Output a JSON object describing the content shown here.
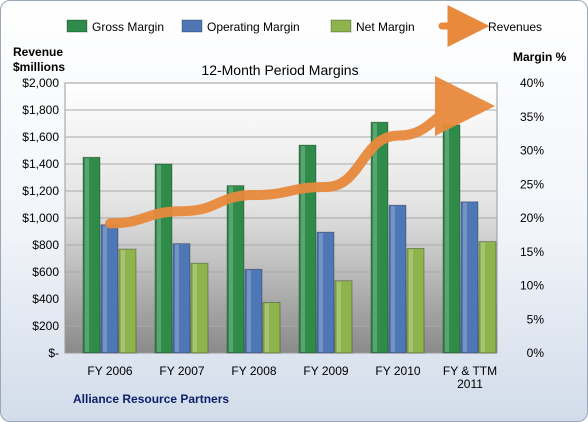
{
  "chart_data": {
    "type": "bar",
    "title": "12-Month Period Margins",
    "company": "Alliance Resource Partners",
    "categories": [
      "FY 2006",
      "FY 2007",
      "FY 2008",
      "FY 2009",
      "FY 2010",
      "FY & TTM\n2011"
    ],
    "left_axis": {
      "label_line1": "Revenue",
      "label_line2": "$millions",
      "ticks": [
        "$-",
        "$200",
        "$400",
        "$600",
        "$800",
        "$1,000",
        "$1,200",
        "$1,400",
        "$1,600",
        "$1,800",
        "$2,000"
      ],
      "ylim": [
        0,
        2000
      ]
    },
    "right_axis": {
      "label": "Margin %",
      "ticks": [
        "0%",
        "5%",
        "10%",
        "15%",
        "20%",
        "25%",
        "30%",
        "35%",
        "40%"
      ],
      "ylim": [
        0,
        40
      ]
    },
    "series": [
      {
        "name": "Gross Margin",
        "kind": "bar",
        "axis": "right",
        "color": "#2e8b4a",
        "values": [
          29,
          28,
          24.8,
          30.8,
          34.2,
          33.8
        ]
      },
      {
        "name": "Operating Margin",
        "kind": "bar",
        "axis": "right",
        "color": "#4f76b5",
        "values": [
          19,
          16.2,
          12.4,
          17.9,
          21.9,
          22.4
        ]
      },
      {
        "name": "Net Margin",
        "kind": "bar",
        "axis": "right",
        "color": "#8fb44e",
        "values": [
          15.4,
          13.3,
          7.5,
          10.7,
          15.5,
          16.5
        ]
      },
      {
        "name": "Revenues",
        "kind": "line",
        "axis": "left",
        "color": "#e8893c",
        "values": [
          960,
          1050,
          1170,
          1230,
          1610,
          1830
        ]
      }
    ],
    "grid": true,
    "legend": "top"
  }
}
